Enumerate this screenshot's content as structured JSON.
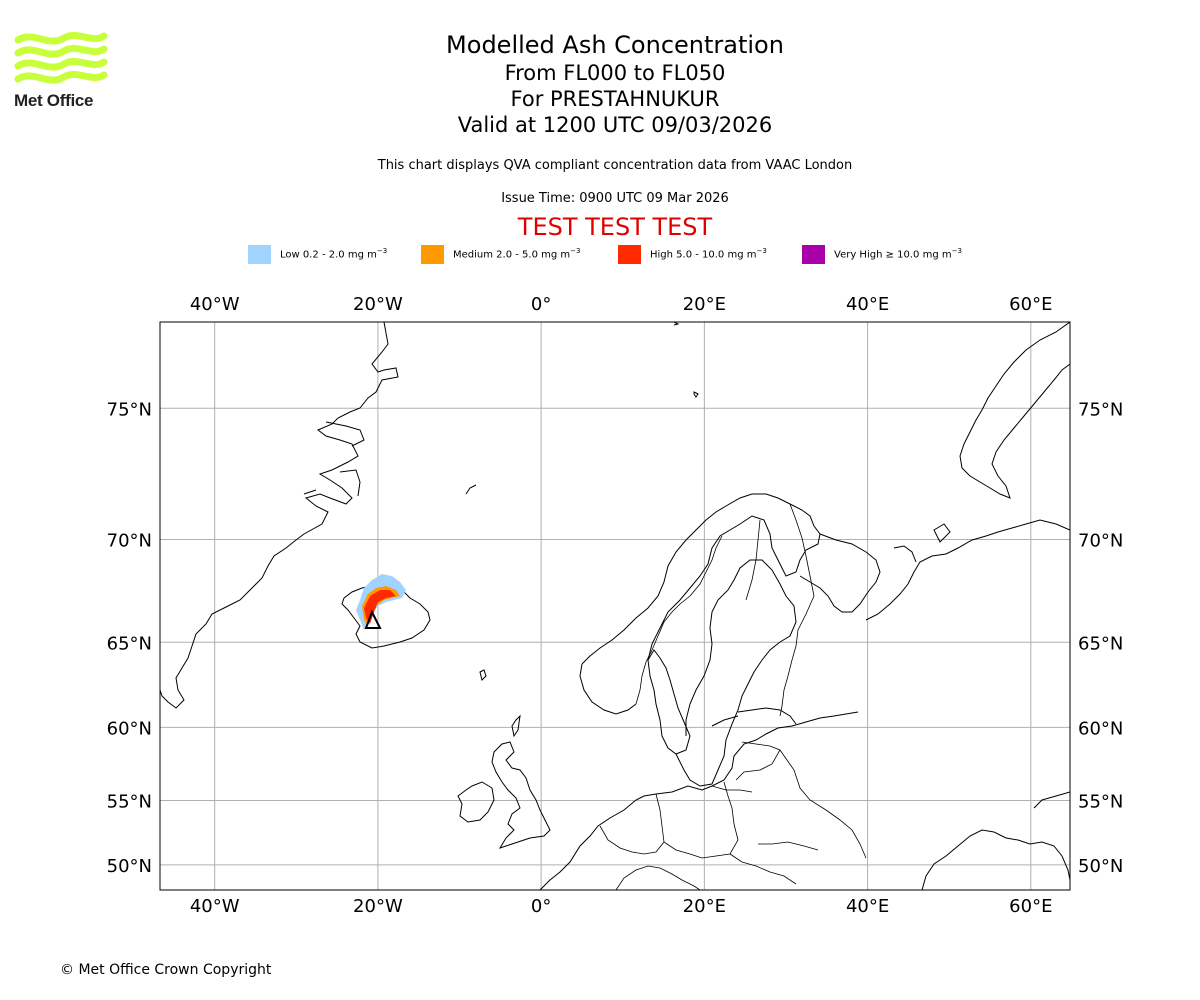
{
  "logo": {
    "text": "Met Office",
    "color": "#c8ff3a"
  },
  "title": {
    "main": "Modelled Ash Concentration",
    "levels": "From FL000 to FL050",
    "volcano": "For PRESTAHNUKUR",
    "valid": "Valid at 1200 UTC 09/03/2026"
  },
  "note": "This chart displays QVA compliant concentration data from VAAC London",
  "issue_time": "Issue Time: 0900 UTC 09 Mar 2026",
  "test_banner": "TEST TEST TEST",
  "legend": [
    {
      "label": "Low 0.2 - 2.0 mg m",
      "exp": "−3",
      "color": "#a0d4ff"
    },
    {
      "label": "Medium 2.0 - 5.0 mg m",
      "exp": "−3",
      "color": "#ff9900"
    },
    {
      "label": "High 5.0 - 10.0 mg m",
      "exp": "−3",
      "color": "#ff2a00"
    },
    {
      "label": "Very High  ≥  10.0 mg m",
      "exp": "−3",
      "color": "#aa00aa"
    }
  ],
  "map": {
    "lon_range": [
      -46.7,
      64.8
    ],
    "lat_range": [
      47.9,
      77.6
    ],
    "lon_ticks": [
      {
        "value": -40,
        "label": "40°W"
      },
      {
        "value": -20,
        "label": "20°W"
      },
      {
        "value": 0,
        "label": "0°"
      },
      {
        "value": 20,
        "label": "20°E"
      },
      {
        "value": 40,
        "label": "40°E"
      },
      {
        "value": 60,
        "label": "60°E"
      }
    ],
    "lat_ticks": [
      {
        "value": 75,
        "label": "75°N"
      },
      {
        "value": 70,
        "label": "70°N"
      },
      {
        "value": 65,
        "label": "65°N"
      },
      {
        "value": 60,
        "label": "60°N"
      },
      {
        "value": 55,
        "label": "55°N"
      },
      {
        "value": 50,
        "label": "50°N"
      }
    ],
    "grid_color": "#b0b0b0"
  },
  "copyright": "© Met Office Crown Copyright"
}
